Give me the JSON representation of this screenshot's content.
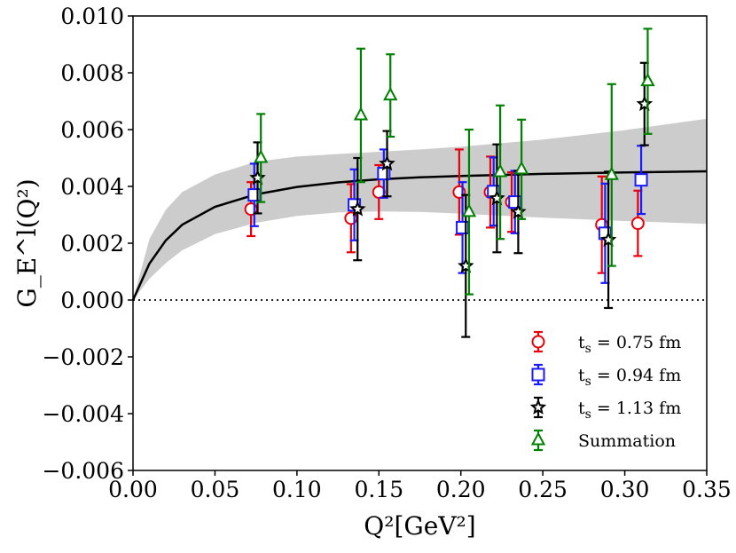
{
  "chart_data": {
    "type": "scatter",
    "title": "",
    "xlabel": "Q²[GeV²]",
    "ylabel": "G_E^l(Q²)",
    "xlim": [
      0.0,
      0.35
    ],
    "ylim": [
      -0.006,
      0.01
    ],
    "grid": false,
    "legend_position": "bottom-right",
    "x_ticks": [
      "0.00",
      "0.05",
      "0.10",
      "0.15",
      "0.20",
      "0.25",
      "0.30",
      "0.35"
    ],
    "y_ticks": [
      "−0.006",
      "−0.004",
      "−0.002",
      "0.000",
      "0.002",
      "0.004",
      "0.006",
      "0.008",
      "0.010"
    ],
    "x_tick_values": [
      0.0,
      0.05,
      0.1,
      0.15,
      0.2,
      0.25,
      0.3,
      0.35
    ],
    "y_tick_values": [
      -0.006,
      -0.004,
      -0.002,
      0.0,
      0.002,
      0.004,
      0.006,
      0.008,
      0.01
    ],
    "fit": {
      "name": "Fit",
      "x": [
        0.0,
        0.01,
        0.02,
        0.03,
        0.05,
        0.075,
        0.1,
        0.125,
        0.15,
        0.175,
        0.2,
        0.25,
        0.3,
        0.35
      ],
      "y": [
        0.0,
        0.00128,
        0.0021,
        0.00265,
        0.00328,
        0.00372,
        0.00398,
        0.00414,
        0.00425,
        0.00432,
        0.00437,
        0.00444,
        0.00449,
        0.00453
      ],
      "band_upper": [
        0.0,
        0.00215,
        0.00318,
        0.0038,
        0.00442,
        0.00487,
        0.00505,
        0.00514,
        0.00522,
        0.0053,
        0.0054,
        0.00565,
        0.00598,
        0.00638
      ],
      "band_lower": [
        0.0,
        0.00075,
        0.0013,
        0.00175,
        0.00232,
        0.00272,
        0.00296,
        0.00308,
        0.00312,
        0.0031,
        0.00304,
        0.0029,
        0.00278,
        0.00268
      ],
      "color": "#000000",
      "band_color": "#cccccc"
    },
    "zero_line": 0.0,
    "series": [
      {
        "name": "t_s = 0.75 fm",
        "label_main": "t",
        "label_sub": "s",
        "label_rest": " = 0.75 fm",
        "marker": "circle",
        "color": "#e8000b",
        "x": [
          0.072,
          0.133,
          0.15,
          0.199,
          0.218,
          0.231,
          0.286,
          0.308
        ],
        "y": [
          0.0032,
          0.00288,
          0.0038,
          0.0038,
          0.0038,
          0.00345,
          0.00265,
          0.0027
        ],
        "err": [
          0.00095,
          0.0012,
          0.00095,
          0.0015,
          0.00125,
          0.00105,
          0.0017,
          0.00115
        ]
      },
      {
        "name": "t_s = 0.94 fm",
        "label_main": "t",
        "label_sub": "s",
        "label_rest": " = 0.94 fm",
        "marker": "square",
        "color": "#1a1aff",
        "x": [
          0.074,
          0.135,
          0.153,
          0.201,
          0.22,
          0.233,
          0.288,
          0.31
        ],
        "y": [
          0.0037,
          0.00335,
          0.00445,
          0.00255,
          0.00382,
          0.00345,
          0.00235,
          0.00423
        ],
        "err": [
          0.0011,
          0.00125,
          0.00085,
          0.0016,
          0.0012,
          0.0011,
          0.00175,
          0.0012
        ]
      },
      {
        "name": "t_s = 1.13 fm",
        "label_main": "t",
        "label_sub": "s",
        "label_rest": " = 1.13 fm",
        "marker": "star",
        "color": "#000000",
        "x": [
          0.076,
          0.137,
          0.155,
          0.203,
          0.222,
          0.235,
          0.29,
          0.312
        ],
        "y": [
          0.0043,
          0.0032,
          0.0048,
          0.0012,
          0.00358,
          0.0031,
          0.00212,
          0.0069
        ],
        "err": [
          0.00125,
          0.0018,
          0.00115,
          0.0025,
          0.0019,
          0.00145,
          0.0024,
          0.00145
        ]
      },
      {
        "name": "Summation",
        "label_main": "Summation",
        "label_sub": "",
        "label_rest": "",
        "marker": "triangle",
        "color": "#008000",
        "x": [
          0.078,
          0.139,
          0.157,
          0.205,
          0.224,
          0.237,
          0.292,
          0.314
        ],
        "y": [
          0.005,
          0.0065,
          0.0072,
          0.0031,
          0.0045,
          0.0046,
          0.0044,
          0.0077
        ],
        "err": [
          0.00155,
          0.00235,
          0.00145,
          0.0029,
          0.00235,
          0.00175,
          0.0032,
          0.00185
        ]
      }
    ]
  }
}
